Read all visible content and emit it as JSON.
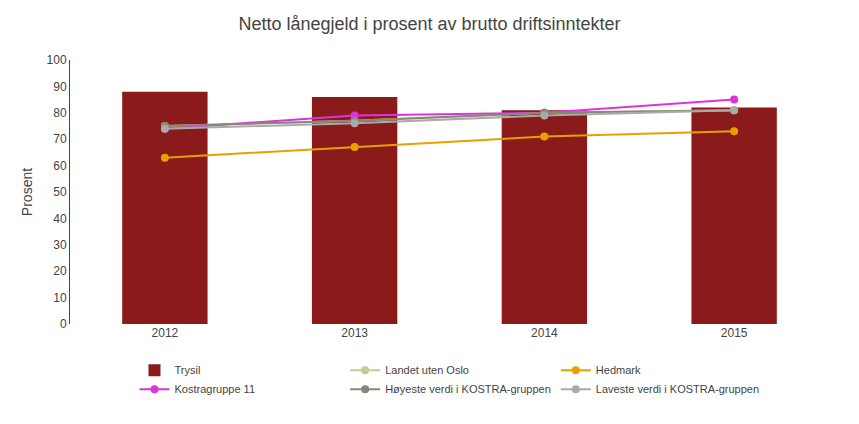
{
  "chart_data": {
    "type": "bar",
    "title": "Netto lånegjeld i prosent av brutto driftsinntekter",
    "y_label": "Prosent",
    "categories": [
      "2012",
      "2013",
      "2014",
      "2015"
    ],
    "series": [
      {
        "name": "Trysil",
        "type": "bar",
        "color": "#8B1A1A",
        "values": [
          88,
          86,
          81,
          82
        ]
      },
      {
        "name": "Landet uten Oslo",
        "type": "line",
        "marker": "circle",
        "color": "#C8C896",
        "values": [
          75,
          77,
          80,
          81
        ]
      },
      {
        "name": "Hedmark",
        "type": "line",
        "marker": "circle",
        "color": "#E8A000",
        "values": [
          63,
          67,
          71,
          73
        ]
      },
      {
        "name": "Kostragruppe 11",
        "type": "line",
        "marker": "circle",
        "color": "#DD33DD",
        "values": [
          74,
          79,
          80,
          85
        ]
      },
      {
        "name": "Høyeste verdi i KOSTRA-gruppen",
        "type": "line",
        "marker": "circle",
        "color": "#888878",
        "values": [
          75,
          77,
          80,
          81
        ]
      },
      {
        "name": "Laveste verdi i KOSTRA-gruppen",
        "type": "line",
        "marker": "circle",
        "color": "#AAAAAA",
        "values": [
          74,
          76,
          79,
          81
        ]
      }
    ],
    "ylim": [
      0,
      100
    ],
    "yticks": [
      0,
      10,
      20,
      30,
      40,
      50,
      60,
      70,
      80,
      90,
      100
    ],
    "grid": false,
    "legend": "bottom"
  }
}
